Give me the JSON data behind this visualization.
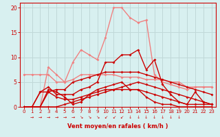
{
  "x": [
    0,
    1,
    2,
    3,
    4,
    5,
    6,
    7,
    8,
    9,
    10,
    11,
    12,
    13,
    14,
    15,
    16,
    17,
    18,
    19,
    20,
    21,
    22,
    23
  ],
  "lines": [
    {
      "y": [
        6.5,
        6.5,
        6.5,
        6.5,
        5.0,
        5.0,
        5.5,
        6.5,
        6.5,
        6.5,
        6.5,
        6.5,
        6.0,
        6.0,
        6.0,
        5.5,
        5.5,
        5.5,
        5.0,
        5.0,
        4.0,
        4.0,
        4.0,
        4.0
      ],
      "color": "#f08080",
      "lw": 1.0
    },
    {
      "y": [
        0,
        0,
        0,
        8.0,
        6.5,
        5.0,
        9.0,
        11.5,
        10.5,
        9.5,
        14.0,
        20.0,
        20.0,
        18.0,
        17.0,
        17.5,
        6.5,
        5.0,
        4.5,
        4.0,
        3.5,
        4.0,
        4.0,
        4.0
      ],
      "color": "#f08080",
      "lw": 1.0
    },
    {
      "y": [
        0,
        0,
        3.0,
        4.0,
        2.5,
        2.5,
        2.5,
        3.5,
        4.0,
        5.0,
        9.0,
        9.0,
        10.5,
        10.5,
        11.5,
        7.5,
        9.5,
        4.5,
        2.5,
        1.0,
        0.5,
        3.0,
        1.0,
        0.5
      ],
      "color": "#cc0000",
      "lw": 1.0
    },
    {
      "y": [
        0,
        0,
        0,
        3.0,
        3.5,
        3.5,
        5.0,
        5.5,
        6.0,
        6.5,
        7.0,
        7.0,
        7.0,
        7.0,
        7.0,
        6.5,
        6.0,
        5.5,
        5.0,
        4.5,
        4.0,
        3.5,
        3.0,
        2.5
      ],
      "color": "#cc0000",
      "lw": 1.0
    },
    {
      "y": [
        0,
        0,
        3.0,
        3.0,
        2.0,
        1.5,
        1.5,
        2.0,
        2.5,
        3.0,
        3.5,
        3.5,
        3.5,
        3.5,
        3.5,
        3.0,
        2.5,
        2.0,
        1.5,
        1.0,
        0.5,
        0.5,
        0.5,
        0.5
      ],
      "color": "#cc0000",
      "lw": 1.0
    },
    {
      "y": [
        0,
        0,
        0,
        0,
        0,
        0.5,
        1.0,
        1.5,
        2.0,
        2.5,
        3.0,
        3.5,
        4.0,
        4.5,
        5.0,
        4.5,
        4.0,
        3.5,
        3.0,
        2.5,
        2.0,
        1.5,
        1.0,
        0.5
      ],
      "color": "#cc0000",
      "lw": 1.0
    },
    {
      "y": [
        0,
        0,
        0,
        3.5,
        3.0,
        2.0,
        0.5,
        1.0,
        2.5,
        3.5,
        4.0,
        4.5,
        5.0,
        3.5,
        3.5,
        2.0,
        1.0,
        0.5,
        0.5,
        0.0,
        0.0,
        0.0,
        0.0,
        0.0
      ],
      "color": "#cc0000",
      "lw": 1.0
    }
  ],
  "bg_color": "#d8f0f0",
  "grid_color": "#c0d8d8",
  "axis_color": "#cc0000",
  "xlabel": "Vent moyen/en rafales ( km/h )",
  "ylabel_ticks": [
    0,
    5,
    10,
    15,
    20
  ],
  "xlim": [
    -0.5,
    23.5
  ],
  "ylim": [
    0,
    21
  ]
}
